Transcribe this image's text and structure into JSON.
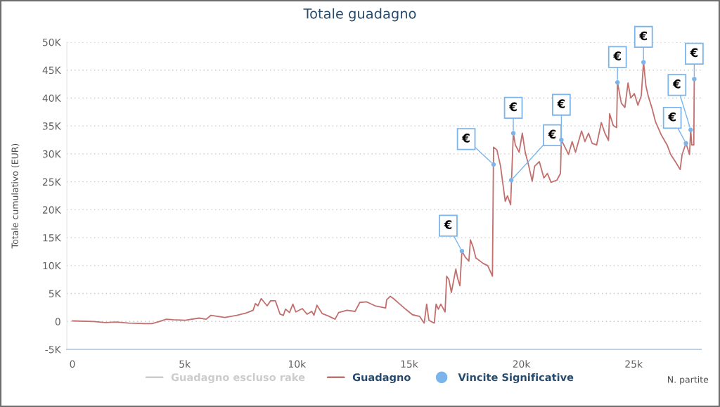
{
  "chart_data": {
    "type": "line",
    "title": "Totale guadagno",
    "xlabel": "N. partite",
    "ylabel": "Totale cumulativo (EUR)",
    "xlim": [
      -250,
      28000
    ],
    "ylim": [
      -5000,
      50000
    ],
    "xticks": [
      0,
      {
        "value": 5000,
        "label": "5k"
      },
      {
        "value": 10000,
        "label": "10k"
      },
      {
        "value": 15000,
        "label": "15k"
      },
      {
        "value": 20000,
        "label": "20k"
      },
      {
        "value": 25000,
        "label": "25k"
      }
    ],
    "yticks": [
      {
        "value": -5000,
        "label": "-5K"
      },
      0,
      {
        "value": 5000,
        "label": "5K"
      },
      {
        "value": 10000,
        "label": "10K"
      },
      {
        "value": 15000,
        "label": "15K"
      },
      {
        "value": 20000,
        "label": "20K"
      },
      {
        "value": 25000,
        "label": "25K"
      },
      {
        "value": 30000,
        "label": "30K"
      },
      {
        "value": 35000,
        "label": "35K"
      },
      {
        "value": 40000,
        "label": "40K"
      },
      {
        "value": 45000,
        "label": "45K"
      },
      {
        "value": 50000,
        "label": "50K"
      }
    ],
    "grid": "y",
    "legend": "bottom",
    "series": [
      {
        "name": "Guadagno escluso rake",
        "color": "#cccccc"
      },
      {
        "name": "Guadagno",
        "color": "#c2706e",
        "x": [
          0,
          940,
          1460,
          1970,
          2500,
          3240,
          3550,
          3870,
          4180,
          4500,
          5020,
          5640,
          5960,
          6170,
          6790,
          7320,
          7730,
          8050,
          8150,
          8260,
          8410,
          8670,
          8830,
          9040,
          9250,
          9400,
          9490,
          9670,
          9820,
          9950,
          10240,
          10450,
          10660,
          10760,
          10890,
          11130,
          11390,
          11700,
          11860,
          12230,
          12590,
          12800,
          13110,
          13480,
          13950,
          14000,
          14160,
          14300,
          14530,
          14840,
          15150,
          15470,
          15670,
          15780,
          15880,
          16120,
          16200,
          16300,
          16410,
          16600,
          16670,
          16770,
          16880,
          17080,
          17160,
          17260,
          17350,
          17500,
          17660,
          17730,
          17850,
          17970,
          18290,
          18500,
          18710,
          18760,
          18910,
          19070,
          19180,
          19280,
          19380,
          19520,
          19640,
          19730,
          19900,
          20040,
          20170,
          20330,
          20480,
          20590,
          20800,
          21000,
          21160,
          21320,
          21580,
          21740,
          21780,
          21890,
          22100,
          22260,
          22410,
          22680,
          22830,
          22990,
          23150,
          23350,
          23560,
          23720,
          23880,
          23930,
          24090,
          24240,
          24280,
          24450,
          24610,
          24750,
          24870,
          25030,
          25190,
          25340,
          25440,
          25550,
          25660,
          25810,
          25970,
          26230,
          26490,
          26650,
          26860,
          27070,
          27160,
          27330,
          27490,
          27540,
          27590,
          27680,
          27700
        ],
        "values": [
          100,
          0,
          -200,
          -100,
          -300,
          -400,
          -400,
          0,
          400,
          300,
          200,
          600,
          400,
          1100,
          700,
          1100,
          1500,
          2000,
          3200,
          2800,
          4100,
          2800,
          3700,
          3700,
          1300,
          1100,
          2200,
          1600,
          3100,
          1700,
          2300,
          1300,
          1800,
          1100,
          2900,
          1400,
          1000,
          400,
          1600,
          2000,
          1800,
          3400,
          3500,
          2800,
          2400,
          3900,
          4500,
          4100,
          3300,
          2200,
          1200,
          900,
          -300,
          3100,
          200,
          -300,
          3100,
          2200,
          3100,
          1700,
          8100,
          7500,
          5200,
          9400,
          7700,
          6400,
          12600,
          11500,
          10800,
          14600,
          13300,
          11400,
          10400,
          10000,
          8100,
          31200,
          30700,
          27800,
          24500,
          21500,
          22500,
          20900,
          33700,
          31600,
          30300,
          33700,
          30300,
          27800,
          25100,
          27800,
          28600,
          25700,
          26500,
          24900,
          25300,
          26500,
          32500,
          31600,
          29900,
          32200,
          30300,
          34100,
          32200,
          33700,
          31900,
          31600,
          35600,
          33700,
          32400,
          37200,
          35100,
          34700,
          42800,
          39100,
          38300,
          42700,
          40000,
          40800,
          38700,
          40400,
          46400,
          42100,
          40200,
          38300,
          35800,
          33400,
          31600,
          29900,
          28600,
          27200,
          29900,
          31900,
          29900,
          34300,
          31600,
          31600,
          43400
        ]
      },
      {
        "name": "Vincite Significative",
        "type": "scatter",
        "color": "#7cb5ec",
        "marker": "circle",
        "x": [
          17350,
          18760,
          19550,
          19640,
          21780,
          24280,
          25440,
          27330,
          27540,
          27700
        ],
        "values": [
          12600,
          28100,
          25300,
          33700,
          32500,
          42800,
          46400,
          31900,
          34300,
          43400
        ],
        "value_labels": [
          "€",
          "€",
          "€",
          "€",
          "€",
          "€",
          "€",
          "€",
          "€",
          "€"
        ]
      }
    ]
  }
}
